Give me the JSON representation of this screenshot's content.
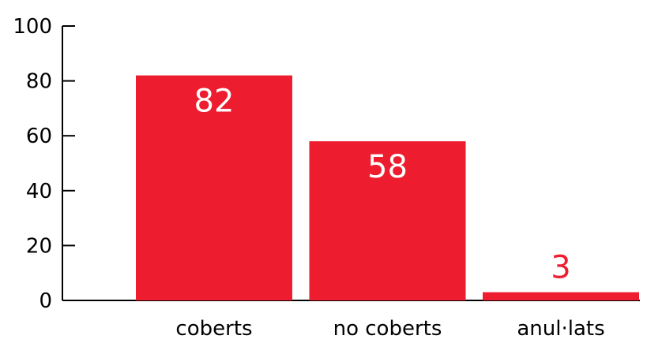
{
  "chart_data": {
    "type": "bar",
    "categories": [
      "coberts",
      "no coberts",
      "anul·lats"
    ],
    "values": [
      82,
      58,
      3
    ],
    "data_labels": [
      "82",
      "58",
      "3"
    ],
    "ylim": [
      0,
      100
    ],
    "yticks": [
      "0",
      "20",
      "40",
      "60",
      "80",
      "100"
    ],
    "title": "",
    "xlabel": "",
    "ylabel": "",
    "grid": false,
    "bar_color": "#ed1c2e",
    "label_color_inside": "#ffffff",
    "label_color_outside": "#ed1c2e"
  }
}
